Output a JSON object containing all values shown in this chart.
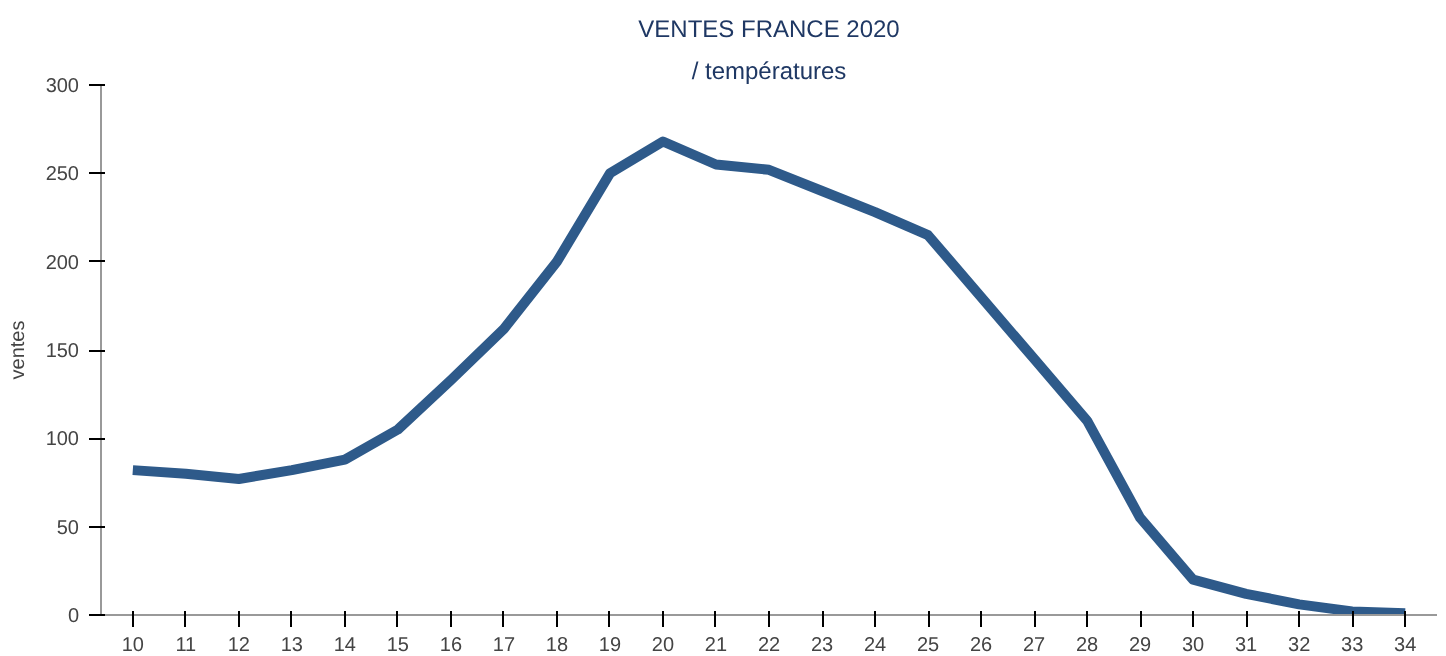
{
  "chart_data": {
    "type": "line",
    "title": "VENTES FRANCE 2020",
    "subtitle": "/ températures",
    "ylabel": "ventes",
    "categories": [
      "10",
      "11",
      "12",
      "13",
      "14",
      "15",
      "16",
      "17",
      "18",
      "19",
      "20",
      "21",
      "22",
      "23",
      "24",
      "25",
      "26",
      "27",
      "28",
      "29",
      "30",
      "31",
      "32",
      "33",
      "34"
    ],
    "series": [
      {
        "color": "#2e5a8a",
        "values": [
          82,
          80,
          77,
          82,
          88,
          105,
          133,
          162,
          200,
          250,
          268,
          255,
          252,
          240,
          228,
          215,
          180,
          145,
          110,
          55,
          20,
          12,
          6,
          2,
          1
        ]
      }
    ],
    "ylim": [
      0,
      300
    ],
    "yticks": [
      0,
      50,
      100,
      150,
      200,
      250,
      300
    ],
    "grid": false,
    "marker": "none",
    "line_style": "solid"
  }
}
